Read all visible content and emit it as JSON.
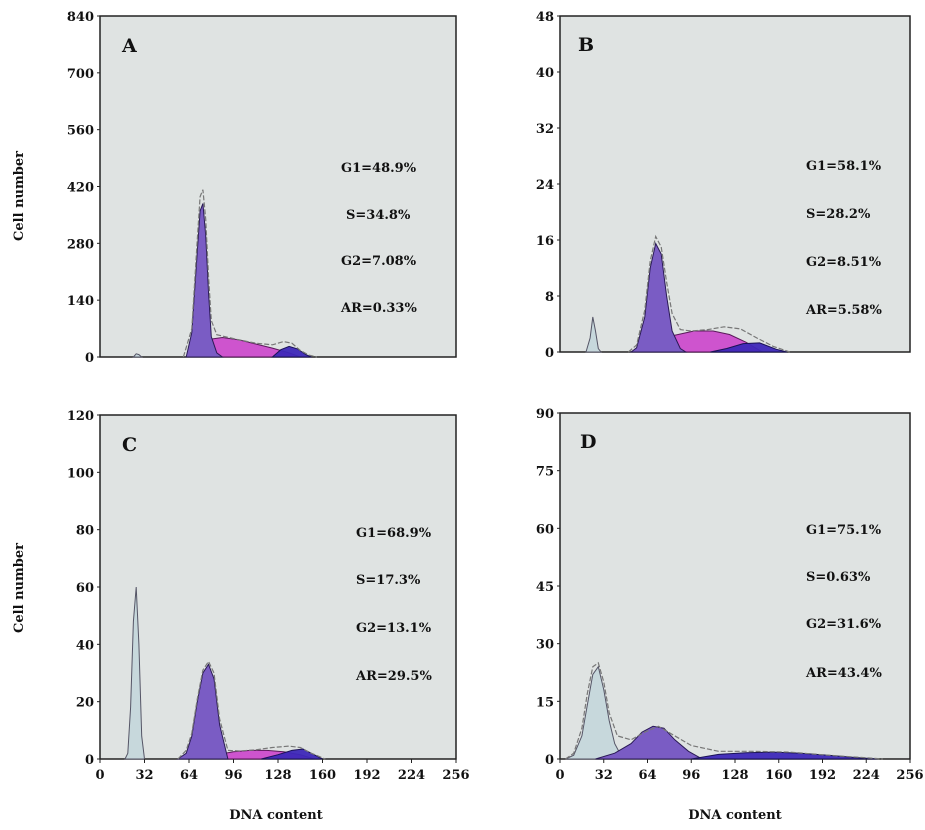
{
  "colors": {
    "panel_bg": "#dfe3e2",
    "g1_fill": "#7a5cc4",
    "s_fill": "#cc44cc",
    "g2_fill": "#3d28b8",
    "ap_fill": "#c7d8dc",
    "fit_line": "#777777"
  },
  "chart_data": [
    {
      "type": "area",
      "panel_label": "A",
      "xlabel": "",
      "ylabel": "Cell number",
      "xlim": [
        0,
        256
      ],
      "ylim": [
        0,
        840
      ],
      "yticks": [
        "0",
        "140",
        "280",
        "420",
        "560",
        "700",
        "840"
      ],
      "xticks": [],
      "annotations": [
        "G1=48.9%",
        "S=34.8%",
        "G2=7.08%",
        "AR=0.33%"
      ],
      "series": [
        {
          "component": "apoptotic",
          "x": [
            24,
            26,
            28,
            30
          ],
          "y": [
            0,
            8,
            6,
            0
          ]
        },
        {
          "component": "G1",
          "x": [
            62,
            66,
            70,
            72,
            74,
            76,
            78,
            80,
            84,
            88
          ],
          "y": [
            0,
            60,
            260,
            360,
            378,
            300,
            160,
            50,
            10,
            0
          ]
        },
        {
          "component": "S",
          "x": [
            66,
            76,
            88,
            100,
            112,
            124,
            136,
            144
          ],
          "y": [
            0,
            42,
            48,
            42,
            32,
            22,
            10,
            0
          ]
        },
        {
          "component": "G2",
          "x": [
            124,
            130,
            136,
            142,
            148,
            152
          ],
          "y": [
            0,
            18,
            26,
            20,
            6,
            0
          ]
        },
        {
          "component": "fit",
          "x": [
            60,
            66,
            70,
            72,
            74,
            76,
            78,
            80,
            84,
            90,
            100,
            112,
            124,
            132,
            138,
            144,
            150,
            156
          ],
          "y": [
            0,
            70,
            290,
            395,
            412,
            340,
            200,
            90,
            55,
            50,
            42,
            34,
            30,
            38,
            34,
            16,
            5,
            0
          ]
        }
      ]
    },
    {
      "type": "area",
      "panel_label": "B",
      "xlabel": "",
      "ylabel": "",
      "xlim": [
        0,
        256
      ],
      "ylim": [
        0,
        48
      ],
      "yticks": [
        "0",
        "8",
        "16",
        "24",
        "32",
        "40",
        "48"
      ],
      "xticks": [],
      "annotations": [
        "G1=58.1%",
        "S=28.2%",
        "G2=8.51%",
        "AR=5.58%"
      ],
      "series": [
        {
          "component": "apoptotic",
          "x": [
            19,
            22,
            24,
            26,
            28,
            30
          ],
          "y": [
            0,
            2,
            5,
            3,
            0.5,
            0
          ]
        },
        {
          "component": "G1",
          "x": [
            52,
            56,
            62,
            66,
            70,
            74,
            78,
            82,
            88,
            92
          ],
          "y": [
            0,
            0.6,
            5,
            12,
            15.5,
            14,
            8,
            3,
            0.5,
            0
          ]
        },
        {
          "component": "S",
          "x": [
            56,
            70,
            84,
            98,
            112,
            124,
            136,
            148
          ],
          "y": [
            0,
            1,
            2.4,
            3,
            3,
            2.5,
            1.4,
            0
          ]
        },
        {
          "component": "G2",
          "x": [
            110,
            122,
            134,
            146,
            158,
            166
          ],
          "y": [
            0,
            0.5,
            1.2,
            1.3,
            0.4,
            0
          ]
        },
        {
          "component": "fit",
          "x": [
            50,
            56,
            62,
            66,
            70,
            74,
            78,
            82,
            88,
            96,
            108,
            120,
            132,
            144,
            156,
            168
          ],
          "y": [
            0,
            1,
            6,
            13,
            16.5,
            15,
            10,
            5.5,
            3.2,
            3,
            3.2,
            3.6,
            3.3,
            2,
            0.8,
            0
          ]
        }
      ]
    },
    {
      "type": "area",
      "panel_label": "C",
      "xlabel": "DNA content",
      "ylabel": "Cell number",
      "xlim": [
        0,
        256
      ],
      "ylim": [
        0,
        120
      ],
      "yticks": [
        "0",
        "20",
        "40",
        "60",
        "80",
        "100",
        "120"
      ],
      "xticks": [
        "0",
        "32",
        "64",
        "96",
        "128",
        "160",
        "192",
        "224",
        "256"
      ],
      "annotations": [
        "G1=68.9%",
        "S=17.3%",
        "G2=13.1%",
        "AR=29.5%"
      ],
      "series": [
        {
          "component": "apoptotic",
          "x": [
            18,
            20,
            22,
            24,
            26,
            28,
            30,
            32
          ],
          "y": [
            0,
            2,
            18,
            48,
            60,
            40,
            8,
            0
          ]
        },
        {
          "component": "G1",
          "x": [
            56,
            62,
            66,
            70,
            74,
            78,
            82,
            86,
            92
          ],
          "y": [
            0,
            2,
            8,
            20,
            30,
            33,
            28,
            12,
            0
          ]
        },
        {
          "component": "S",
          "x": [
            70,
            84,
            96,
            108,
            120,
            132,
            144,
            154
          ],
          "y": [
            0,
            1.5,
            2.5,
            3,
            3,
            2.5,
            1.5,
            0
          ]
        },
        {
          "component": "G2",
          "x": [
            116,
            128,
            138,
            146,
            152,
            160
          ],
          "y": [
            0,
            1.5,
            3,
            3.5,
            2,
            0
          ]
        },
        {
          "component": "fit",
          "x": [
            56,
            62,
            66,
            70,
            74,
            78,
            82,
            86,
            92,
            100,
            112,
            124,
            136,
            144,
            152,
            162
          ],
          "y": [
            0,
            3,
            9,
            21,
            31,
            34,
            30,
            14,
            3,
            2.8,
            3.2,
            4,
            4.5,
            4,
            2,
            0
          ]
        }
      ]
    },
    {
      "type": "area",
      "panel_label": "D",
      "xlabel": "DNA content",
      "ylabel": "",
      "xlim": [
        0,
        256
      ],
      "ylim": [
        0,
        90
      ],
      "yticks": [
        "0",
        "15",
        "30",
        "45",
        "60",
        "75",
        "90"
      ],
      "xticks": [
        "0",
        "32",
        "64",
        "96",
        "128",
        "160",
        "192",
        "224",
        "256"
      ],
      "annotations": [
        "G1=75.1%",
        "S=0.63%",
        "G2=31.6%",
        "AR=43.4%"
      ],
      "series": [
        {
          "component": "apoptotic",
          "x": [
            4,
            10,
            16,
            20,
            24,
            28,
            32,
            36,
            40,
            46
          ],
          "y": [
            0,
            1,
            6,
            14,
            22,
            24,
            18,
            10,
            4,
            0
          ]
        },
        {
          "component": "G1",
          "x": [
            26,
            40,
            52,
            60,
            68,
            76,
            84,
            94,
            104
          ],
          "y": [
            0,
            1.5,
            4,
            7,
            8.5,
            8,
            5,
            2,
            0
          ]
        },
        {
          "component": "S",
          "x": [
            90,
            110,
            130
          ],
          "y": [
            0,
            0.1,
            0
          ]
        },
        {
          "component": "G2",
          "x": [
            96,
            116,
            136,
            156,
            176,
            196,
            216,
            232
          ],
          "y": [
            0,
            1.2,
            1.6,
            1.8,
            1.5,
            1,
            0.4,
            0
          ]
        },
        {
          "component": "fit",
          "x": [
            4,
            10,
            16,
            20,
            24,
            28,
            32,
            36,
            42,
            52,
            62,
            72,
            84,
            96,
            116,
            140,
            168,
            196,
            224,
            236
          ],
          "y": [
            0,
            1.5,
            8,
            17,
            24,
            25,
            20,
            12,
            6,
            5,
            7,
            8.5,
            6,
            3.5,
            2,
            2,
            1.8,
            1,
            0.3,
            0
          ]
        }
      ]
    }
  ]
}
